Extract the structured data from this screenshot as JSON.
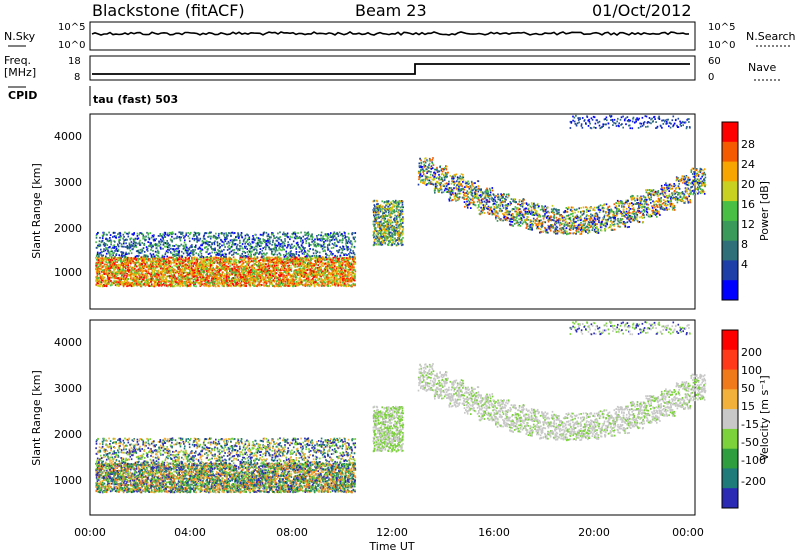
{
  "header": {
    "title": "Blackstone (fitACF)",
    "beam": "Beam 23",
    "date": "01/Oct/2012"
  },
  "top_panels": {
    "nsky_label": "N.Sky",
    "nsky_ticks": [
      "10^5",
      "10^0"
    ],
    "nsearch_label": "N.Search",
    "nsearch_ticks": [
      "10^5",
      "10^0"
    ],
    "freq_label_1": "Freq.",
    "freq_label_2": "[MHz]",
    "freq_ticks": [
      "18",
      "8"
    ],
    "nave_label": "Nave",
    "nave_ticks": [
      "60",
      "0"
    ],
    "cpid_label": "CPID",
    "cpid_value": "tau (fast) 503"
  },
  "chart_data": [
    {
      "type": "heatmap",
      "name": "power",
      "ylabel": "Slant Range [km]",
      "yticks": [
        "1000",
        "2000",
        "3000",
        "4000"
      ],
      "ylim": [
        180,
        4500
      ],
      "colorbar_label": "Power [dB]",
      "colorbar_ticks": [
        "28",
        "24",
        "20",
        "16",
        "12",
        "8",
        "4"
      ],
      "colorbar_colors": [
        "#0000ff",
        "#1f3fa8",
        "#2e6f7a",
        "#3a9a5a",
        "#49c043",
        "#c8d020",
        "#f7a500",
        "#f55a00",
        "#ff0000"
      ]
    },
    {
      "type": "heatmap",
      "name": "velocity",
      "ylabel": "Slant Range [km]",
      "yticks": [
        "1000",
        "2000",
        "3000",
        "4000"
      ],
      "ylim": [
        180,
        4500
      ],
      "xlabel": "Time UT",
      "xticks": [
        "00:00",
        "04:00",
        "08:00",
        "12:00",
        "16:00",
        "20:00",
        "00:00"
      ],
      "colorbar_label": "Velocity [m s⁻¹]",
      "colorbar_ticks": [
        "200",
        "100",
        "50",
        "15",
        "-15",
        "-50",
        "-100",
        "-200"
      ],
      "colorbar_colors": [
        "#2a2ab5",
        "#1f7a7a",
        "#2f9e3f",
        "#7bd23a",
        "#c8c8c8",
        "#f2b13a",
        "#f07a1a",
        "#ff3a1a",
        "#ff0000"
      ]
    }
  ]
}
